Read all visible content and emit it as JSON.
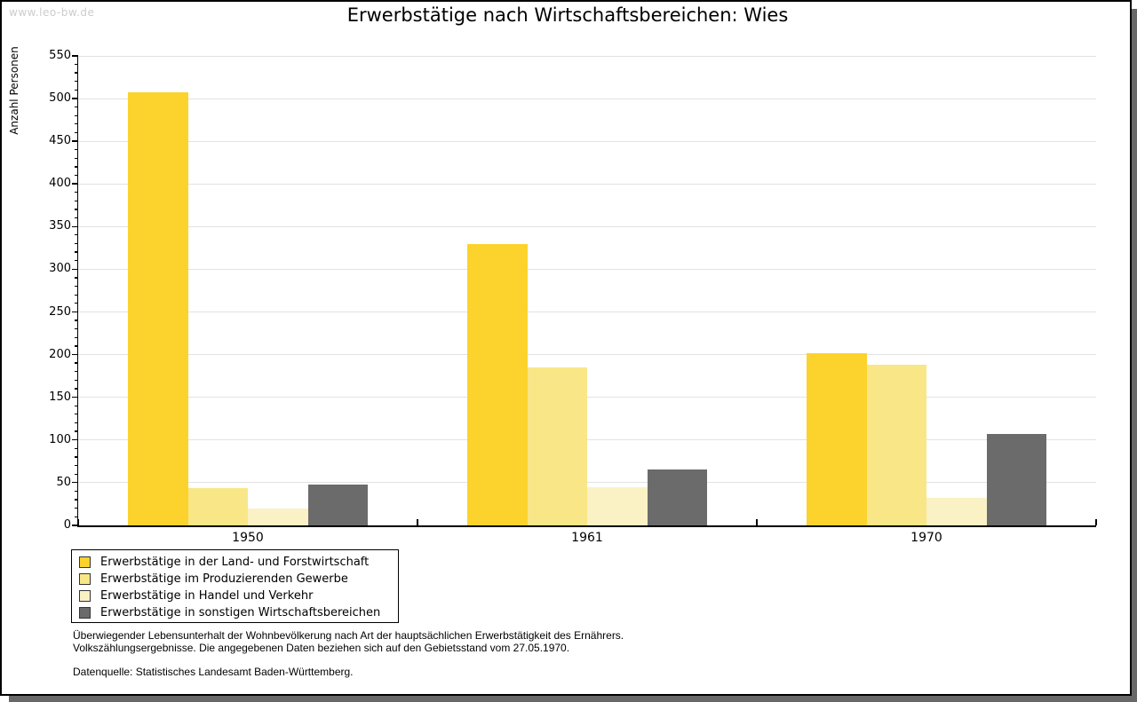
{
  "watermark": "www.leo-bw.de",
  "title": "Erwerbstätige nach Wirtschaftsbereichen: Wies",
  "chart_data": {
    "type": "bar",
    "title": "Erwerbstätige nach Wirtschaftsbereichen: Wies",
    "xlabel": "",
    "ylabel": "Anzahl Personen",
    "ylim": [
      0,
      550
    ],
    "ytick_step": 50,
    "yminor_step": 10,
    "grid": true,
    "legend_position": "bottom-left",
    "categories": [
      "1950",
      "1961",
      "1970"
    ],
    "series": [
      {
        "name": "Erwerbstätige in der Land- und Forstwirtschaft",
        "color": "#FCD32C",
        "values": [
          507,
          330,
          202
        ]
      },
      {
        "name": "Erwerbstätige im Produzierenden Gewerbe",
        "color": "#F9E687",
        "values": [
          44,
          185,
          188
        ]
      },
      {
        "name": "Erwerbstätige in Handel und Verkehr",
        "color": "#FAF1C5",
        "values": [
          20,
          45,
          32
        ]
      },
      {
        "name": "Erwerbstätige in sonstigen Wirtschaftsbereichen",
        "color": "#6B6B6B",
        "values": [
          48,
          65,
          107
        ]
      }
    ]
  },
  "footnote": {
    "line1": "Überwiegender Lebensunterhalt der Wohnbevölkerung nach Art der hauptsächlichen Erwerbstätigkeit des Ernährers.",
    "line2": "Volkszählungsergebnisse. Die angegebenen Daten beziehen sich auf den Gebietsstand vom 27.05.1970.",
    "source": "Datenquelle: Statistisches Landesamt Baden-Württemberg."
  },
  "colors": {
    "grid": "#e2e2e2",
    "axis": "#000000",
    "watermark": "#cccccc",
    "shadow": "#686868"
  }
}
